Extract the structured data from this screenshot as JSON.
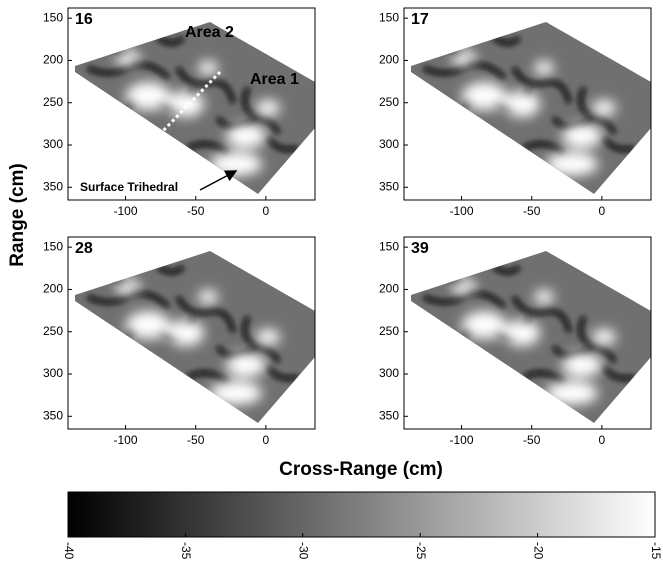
{
  "y_label": "Range (cm)",
  "x_label": "Cross-Range (cm)",
  "chart_data": [
    {
      "type": "image",
      "title": "16",
      "xlim": [
        -141,
        35
      ],
      "ylim": [
        138,
        365
      ],
      "y_inverted": true,
      "xticks": [
        -100,
        -50,
        0
      ],
      "yticks": [
        150,
        200,
        250,
        300,
        350
      ],
      "annotations": [
        "Area 2",
        "Area 1",
        "Surface Trihedral"
      ]
    },
    {
      "type": "image",
      "title": "17",
      "xlim": [
        -141,
        35
      ],
      "ylim": [
        138,
        365
      ],
      "y_inverted": true,
      "xticks": [
        -100,
        -50,
        0
      ],
      "yticks": [
        150,
        200,
        250,
        300,
        350
      ]
    },
    {
      "type": "image",
      "title": "28",
      "xlim": [
        -141,
        35
      ],
      "ylim": [
        138,
        365
      ],
      "y_inverted": true,
      "xticks": [
        -100,
        -50,
        0
      ],
      "yticks": [
        150,
        200,
        250,
        300,
        350
      ]
    },
    {
      "type": "image",
      "title": "39",
      "xlim": [
        -141,
        35
      ],
      "ylim": [
        138,
        365
      ],
      "y_inverted": true,
      "xticks": [
        -100,
        -50,
        0
      ],
      "yticks": [
        150,
        200,
        250,
        300,
        350
      ]
    },
    {
      "type": "colorbar",
      "clim": [
        -40,
        -15
      ],
      "ticks": [
        -40,
        -35,
        -30,
        -25,
        -20,
        -15
      ],
      "colormap": [
        "#000000",
        "#ffffff"
      ]
    }
  ]
}
